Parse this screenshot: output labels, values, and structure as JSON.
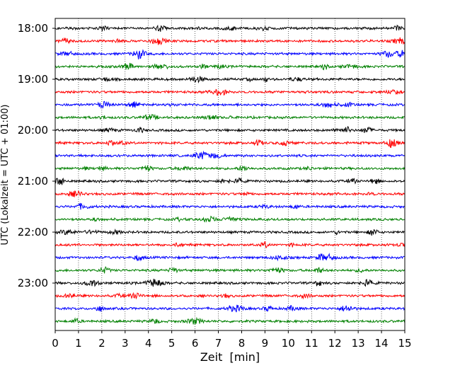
{
  "chart_data": {
    "type": "line",
    "title": "",
    "xlabel": "Zeit  [min]",
    "ylabel": "UTC (Lokalzeit = UTC + 01:00)",
    "xlim": [
      0,
      15
    ],
    "xticks": [
      0,
      1,
      2,
      3,
      4,
      5,
      6,
      7,
      8,
      9,
      10,
      11,
      12,
      13,
      14,
      15
    ],
    "yticks": [
      "18:00",
      "19:00",
      "20:00",
      "21:00",
      "22:00",
      "23:00"
    ],
    "grid": "vertical dotted",
    "trace_colors": [
      "#000000",
      "#ff0000",
      "#0000ff",
      "#008000"
    ],
    "traces": [
      {
        "start": "18:00"
      },
      {
        "start": "18:15"
      },
      {
        "start": "18:30"
      },
      {
        "start": "18:45"
      },
      {
        "start": "19:00"
      },
      {
        "start": "19:15"
      },
      {
        "start": "19:30"
      },
      {
        "start": "19:45"
      },
      {
        "start": "20:00"
      },
      {
        "start": "20:15"
      },
      {
        "start": "20:30"
      },
      {
        "start": "20:45"
      },
      {
        "start": "21:00"
      },
      {
        "start": "21:15"
      },
      {
        "start": "21:30"
      },
      {
        "start": "21:45"
      },
      {
        "start": "22:00"
      },
      {
        "start": "22:15"
      },
      {
        "start": "22:30"
      },
      {
        "start": "22:45"
      },
      {
        "start": "23:00"
      },
      {
        "start": "23:15"
      },
      {
        "start": "23:30"
      },
      {
        "start": "23:45"
      }
    ]
  }
}
